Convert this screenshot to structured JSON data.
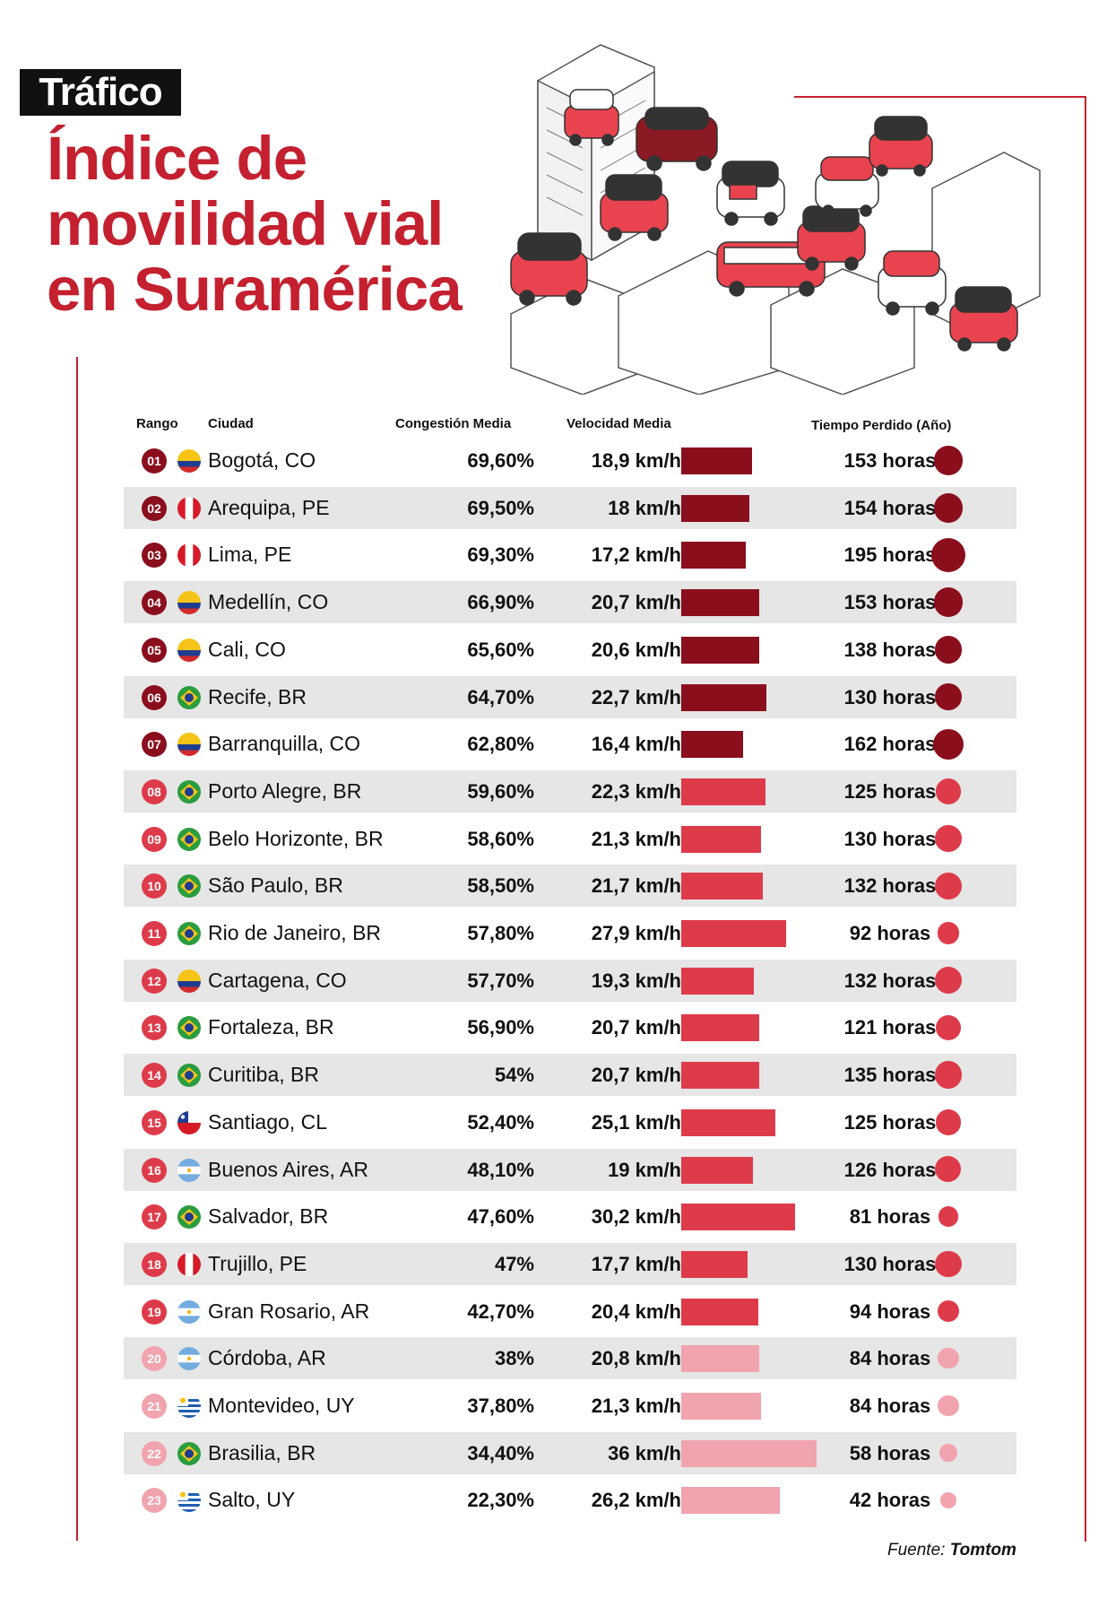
{
  "header": {
    "tag": "Tráfico",
    "title_lines": [
      "Índice de",
      "movilidad vial",
      "en Suramérica"
    ]
  },
  "columns": {
    "rank": "Rango",
    "city": "Ciudad",
    "congestion": "Congestión Media",
    "speed": "Velocidad Media",
    "time_lost": "Tiempo Perdido (Año)"
  },
  "colors": {
    "dark": "#8b0e1d",
    "mid": "#de3b4a",
    "light": "#f1a3ae",
    "accent": "#c4202f"
  },
  "chart_data": {
    "type": "table",
    "columns": [
      "Rango",
      "Ciudad",
      "Congestión Media",
      "Velocidad Media",
      "Tiempo Perdido (Año)"
    ],
    "rows": [
      {
        "rank": "01",
        "city": "Bogotá, CO",
        "country": "CO",
        "congestion": "69,60%",
        "speed": "18,9 km/h",
        "speed_value": 18.9,
        "hours": "153 horas",
        "hours_value": 153,
        "tier": "dark"
      },
      {
        "rank": "02",
        "city": "Arequipa, PE",
        "country": "PE",
        "congestion": "69,50%",
        "speed": "18 km/h",
        "speed_value": 18.0,
        "hours": "154 horas",
        "hours_value": 154,
        "tier": "dark"
      },
      {
        "rank": "03",
        "city": "Lima, PE",
        "country": "PE",
        "congestion": "69,30%",
        "speed": "17,2 km/h",
        "speed_value": 17.2,
        "hours": "195 horas",
        "hours_value": 195,
        "tier": "dark"
      },
      {
        "rank": "04",
        "city": "Medellín, CO",
        "country": "CO",
        "congestion": "66,90%",
        "speed": "20,7 km/h",
        "speed_value": 20.7,
        "hours": "153 horas",
        "hours_value": 153,
        "tier": "dark"
      },
      {
        "rank": "05",
        "city": "Cali, CO",
        "country": "CO",
        "congestion": "65,60%",
        "speed": "20,6 km/h",
        "speed_value": 20.6,
        "hours": "138 horas",
        "hours_value": 138,
        "tier": "dark"
      },
      {
        "rank": "06",
        "city": "Recife, BR",
        "country": "BR",
        "congestion": "64,70%",
        "speed": "22,7 km/h",
        "speed_value": 22.7,
        "hours": "130 horas",
        "hours_value": 130,
        "tier": "dark"
      },
      {
        "rank": "07",
        "city": "Barranquilla, CO",
        "country": "CO",
        "congestion": "62,80%",
        "speed": "16,4 km/h",
        "speed_value": 16.4,
        "hours": "162 horas",
        "hours_value": 162,
        "tier": "dark"
      },
      {
        "rank": "08",
        "city": "Porto Alegre, BR",
        "country": "BR",
        "congestion": "59,60%",
        "speed": "22,3 km/h",
        "speed_value": 22.3,
        "hours": "125 horas",
        "hours_value": 125,
        "tier": "mid"
      },
      {
        "rank": "09",
        "city": "Belo Horizonte, BR",
        "country": "BR",
        "congestion": "58,60%",
        "speed": "21,3 km/h",
        "speed_value": 21.3,
        "hours": "130 horas",
        "hours_value": 130,
        "tier": "mid"
      },
      {
        "rank": "10",
        "city": "São Paulo, BR",
        "country": "BR",
        "congestion": "58,50%",
        "speed": "21,7 km/h",
        "speed_value": 21.7,
        "hours": "132 horas",
        "hours_value": 132,
        "tier": "mid"
      },
      {
        "rank": "11",
        "city": "Rio de Janeiro, BR",
        "country": "BR",
        "congestion": "57,80%",
        "speed": "27,9 km/h",
        "speed_value": 27.9,
        "hours": "92 horas",
        "hours_value": 92,
        "tier": "mid"
      },
      {
        "rank": "12",
        "city": "Cartagena, CO",
        "country": "CO",
        "congestion": "57,70%",
        "speed": "19,3 km/h",
        "speed_value": 19.3,
        "hours": "132 horas",
        "hours_value": 132,
        "tier": "mid"
      },
      {
        "rank": "13",
        "city": "Fortaleza, BR",
        "country": "BR",
        "congestion": "56,90%",
        "speed": "20,7 km/h",
        "speed_value": 20.7,
        "hours": "121 horas",
        "hours_value": 121,
        "tier": "mid"
      },
      {
        "rank": "14",
        "city": "Curitiba, BR",
        "country": "BR",
        "congestion": "54%",
        "speed": "20,7 km/h",
        "speed_value": 20.7,
        "hours": "135 horas",
        "hours_value": 135,
        "tier": "mid"
      },
      {
        "rank": "15",
        "city": "Santiago, CL",
        "country": "CL",
        "congestion": "52,40%",
        "speed": "25,1 km/h",
        "speed_value": 25.1,
        "hours": "125 horas",
        "hours_value": 125,
        "tier": "mid"
      },
      {
        "rank": "16",
        "city": "Buenos Aires, AR",
        "country": "AR",
        "congestion": "48,10%",
        "speed": "19 km/h",
        "speed_value": 19.0,
        "hours": "126 horas",
        "hours_value": 126,
        "tier": "mid"
      },
      {
        "rank": "17",
        "city": "Salvador, BR",
        "country": "BR",
        "congestion": "47,60%",
        "speed": "30,2 km/h",
        "speed_value": 30.2,
        "hours": "81 horas",
        "hours_value": 81,
        "tier": "mid"
      },
      {
        "rank": "18",
        "city": "Trujillo, PE",
        "country": "PE",
        "congestion": "47%",
        "speed": "17,7 km/h",
        "speed_value": 17.7,
        "hours": "130 horas",
        "hours_value": 130,
        "tier": "mid"
      },
      {
        "rank": "19",
        "city": "Gran Rosario, AR",
        "country": "AR",
        "congestion": "42,70%",
        "speed": "20,4 km/h",
        "speed_value": 20.4,
        "hours": "94 horas",
        "hours_value": 94,
        "tier": "mid"
      },
      {
        "rank": "20",
        "city": "Córdoba, AR",
        "country": "AR",
        "congestion": "38%",
        "speed": "20,8 km/h",
        "speed_value": 20.8,
        "hours": "84 horas",
        "hours_value": 84,
        "tier": "light"
      },
      {
        "rank": "21",
        "city": "Montevideo, UY",
        "country": "UY",
        "congestion": "37,80%",
        "speed": "21,3 km/h",
        "speed_value": 21.3,
        "hours": "84 horas",
        "hours_value": 84,
        "tier": "light"
      },
      {
        "rank": "22",
        "city": "Brasilia, BR",
        "country": "BR",
        "congestion": "34,40%",
        "speed": "36 km/h",
        "speed_value": 36.0,
        "hours": "58 horas",
        "hours_value": 58,
        "tier": "light"
      },
      {
        "rank": "23",
        "city": "Salto, UY",
        "country": "UY",
        "congestion": "22,30%",
        "speed": "26,2 km/h",
        "speed_value": 26.2,
        "hours": "42 horas",
        "hours_value": 42,
        "tier": "light"
      }
    ]
  },
  "footer": {
    "source_label": "Fuente:",
    "source_name": "Tomtom"
  }
}
